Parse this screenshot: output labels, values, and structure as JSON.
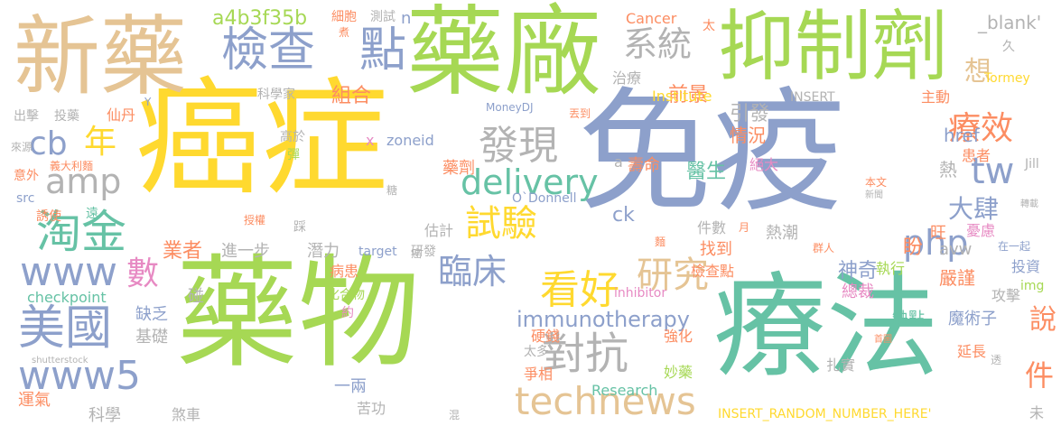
{
  "palette": {
    "sand": "#e5c494",
    "green": "#a6d854",
    "blue": "#8da0cb",
    "teal": "#66c2a5",
    "yellow": "#ffd92f",
    "gray": "#b3b3b3",
    "orange": "#fc8d62",
    "pink": "#e78ac3"
  },
  "words": [
    {
      "text": "癌症",
      "color": "yellow"
    },
    {
      "text": "免疫",
      "color": "blue"
    },
    {
      "text": "藥物",
      "color": "green"
    },
    {
      "text": "療法",
      "color": "teal"
    },
    {
      "text": "新藥",
      "color": "sand"
    },
    {
      "text": "藥廠",
      "color": "green"
    },
    {
      "text": "抑制劑",
      "color": "green"
    },
    {
      "text": "檢查",
      "color": "blue"
    },
    {
      "text": "點",
      "color": "blue"
    },
    {
      "text": "系統",
      "color": "gray"
    },
    {
      "text": "發現",
      "color": "gray"
    },
    {
      "text": "delivery",
      "color": "teal"
    },
    {
      "text": "試驗",
      "color": "yellow"
    },
    {
      "text": "臨床",
      "color": "blue"
    },
    {
      "text": "看好",
      "color": "yellow"
    },
    {
      "text": "研究",
      "color": "sand"
    },
    {
      "text": "對抗",
      "color": "gray"
    },
    {
      "text": "technews",
      "color": "sand"
    },
    {
      "text": "immunotherapy",
      "color": "blue"
    },
    {
      "text": "php",
      "color": "blue"
    },
    {
      "text": "tw",
      "color": "blue"
    },
    {
      "text": "療效",
      "color": "orange"
    },
    {
      "text": "淘金",
      "color": "teal"
    },
    {
      "text": "amp",
      "color": "gray"
    },
    {
      "text": "cb",
      "color": "blue"
    },
    {
      "text": "年",
      "color": "yellow"
    },
    {
      "text": "www",
      "color": "blue"
    },
    {
      "text": "美國",
      "color": "blue"
    },
    {
      "text": "www5",
      "color": "blue"
    },
    {
      "text": "數",
      "color": "pink"
    },
    {
      "text": "a4b3f35b",
      "color": "green"
    },
    {
      "text": "件",
      "color": "orange"
    },
    {
      "text": "說",
      "color": "orange"
    },
    {
      "text": "想",
      "color": "sand"
    },
    {
      "text": "大肆",
      "color": "blue"
    },
    {
      "text": "組合",
      "color": "orange"
    },
    {
      "text": "前景",
      "color": "orange"
    },
    {
      "text": "引發",
      "color": "gray"
    },
    {
      "text": "情況",
      "color": "orange"
    },
    {
      "text": "Institute",
      "color": "yellow"
    },
    {
      "text": "INSERT",
      "color": "gray"
    },
    {
      "text": "Cancer",
      "color": "orange"
    },
    {
      "text": "治療",
      "color": "gray"
    },
    {
      "text": "_blank'",
      "color": "gray"
    },
    {
      "text": "Tormey",
      "color": "yellow"
    },
    {
      "text": "主動",
      "color": "orange"
    },
    {
      "text": "href",
      "color": "blue"
    },
    {
      "text": "患者",
      "color": "orange"
    },
    {
      "text": "熱",
      "color": "gray"
    },
    {
      "text": "Jill",
      "color": "gray"
    },
    {
      "text": "壽命",
      "color": "orange"
    },
    {
      "text": "醫生",
      "color": "teal"
    },
    {
      "text": "絕大",
      "color": "pink"
    },
    {
      "text": "藥劑",
      "color": "orange"
    },
    {
      "text": "O`Donnell",
      "color": "blue"
    },
    {
      "text": "zoneid",
      "color": "blue"
    },
    {
      "text": "x",
      "color": "pink"
    },
    {
      "text": "ck",
      "color": "blue"
    },
    {
      "text": "a",
      "color": "gray"
    },
    {
      "text": "估計",
      "color": "gray"
    },
    {
      "text": "件數",
      "color": "gray"
    },
    {
      "text": "找到",
      "color": "orange"
    },
    {
      "text": "熱潮",
      "color": "gray"
    },
    {
      "text": "旺",
      "color": "orange"
    },
    {
      "text": "憂慮",
      "color": "pink"
    },
    {
      "text": "avw",
      "color": "gray"
    },
    {
      "text": "業者",
      "color": "orange"
    },
    {
      "text": "進一步",
      "color": "gray"
    },
    {
      "text": "潛力",
      "color": "gray"
    },
    {
      "text": "target",
      "color": "blue"
    },
    {
      "text": "研發",
      "color": "gray"
    },
    {
      "text": "病患",
      "color": "orange"
    },
    {
      "text": "盼",
      "color": "orange"
    },
    {
      "text": "神奇",
      "color": "blue"
    },
    {
      "text": "執行",
      "color": "green"
    },
    {
      "text": "嚴謹",
      "color": "orange"
    },
    {
      "text": "投資",
      "color": "blue"
    },
    {
      "text": "檢查點",
      "color": "orange"
    },
    {
      "text": "inhibitor",
      "color": "pink"
    },
    {
      "text": "img",
      "color": "green"
    },
    {
      "text": "checkpoint",
      "color": "teal"
    },
    {
      "text": "缺乏",
      "color": "blue"
    },
    {
      "text": "基礎",
      "color": "gray"
    },
    {
      "text": "碰",
      "color": "gray"
    },
    {
      "text": "化合物",
      "color": "green"
    },
    {
      "text": "約",
      "color": "pink"
    },
    {
      "text": "硬錢",
      "color": "orange"
    },
    {
      "text": "強化",
      "color": "orange"
    },
    {
      "text": "總裁",
      "color": "pink"
    },
    {
      "text": "攻擊",
      "color": "gray"
    },
    {
      "text": "缺點",
      "color": "teal"
    },
    {
      "text": "魔術子",
      "color": "blue"
    },
    {
      "text": "Research",
      "color": "teal"
    },
    {
      "text": "妙藥",
      "color": "green"
    },
    {
      "text": "扎實",
      "color": "gray"
    },
    {
      "text": "延長",
      "color": "orange"
    },
    {
      "text": "太多",
      "color": "gray"
    },
    {
      "text": "爭相",
      "color": "orange"
    },
    {
      "text": "一兩",
      "color": "blue"
    },
    {
      "text": "運氣",
      "color": "orange"
    },
    {
      "text": "科學",
      "color": "gray"
    },
    {
      "text": "煞車",
      "color": "gray"
    },
    {
      "text": "苦功",
      "color": "gray"
    },
    {
      "text": "INSERT_RANDOM_NUMBER_HERE'",
      "color": "yellow"
    },
    {
      "text": "未",
      "color": "gray"
    },
    {
      "text": "出擊",
      "color": "gray"
    },
    {
      "text": "投藥",
      "color": "gray"
    },
    {
      "text": "仙丹",
      "color": "orange"
    },
    {
      "text": "科學家",
      "color": "gray"
    },
    {
      "text": "高於",
      "color": "gray"
    },
    {
      "text": "彈",
      "color": "green"
    },
    {
      "text": "細胞",
      "color": "orange"
    },
    {
      "text": "測試",
      "color": "gray"
    },
    {
      "text": "n",
      "color": "blue"
    },
    {
      "text": "太",
      "color": "orange"
    },
    {
      "text": "久",
      "color": "gray"
    },
    {
      "text": "來源",
      "color": "gray"
    },
    {
      "text": "意外",
      "color": "orange"
    },
    {
      "text": "義大利麵",
      "color": "orange"
    },
    {
      "text": "src",
      "color": "blue"
    },
    {
      "text": "誘使",
      "color": "orange"
    },
    {
      "text": "遠",
      "color": "teal"
    },
    {
      "text": "MoneyDJ",
      "color": "blue"
    },
    {
      "text": "丟到",
      "color": "orange"
    },
    {
      "text": "Y",
      "color": "blue"
    },
    {
      "text": "煮",
      "color": "orange"
    },
    {
      "text": "授權",
      "color": "orange"
    },
    {
      "text": "踩",
      "color": "gray"
    },
    {
      "text": "糖",
      "color": "gray"
    },
    {
      "text": "癌",
      "color": "gray"
    },
    {
      "text": "月",
      "color": "orange"
    },
    {
      "text": "群人",
      "color": "orange"
    },
    {
      "text": "在一起",
      "color": "blue"
    },
    {
      "text": "本文",
      "color": "orange"
    },
    {
      "text": "新聞",
      "color": "gray"
    },
    {
      "text": "轉載",
      "color": "gray"
    },
    {
      "text": "首圖",
      "color": "orange"
    },
    {
      "text": "麵",
      "color": "orange"
    },
    {
      "text": "透",
      "color": "gray"
    },
    {
      "text": "混",
      "color": "gray"
    },
    {
      "text": "shutterstock",
      "color": "gray"
    }
  ]
}
